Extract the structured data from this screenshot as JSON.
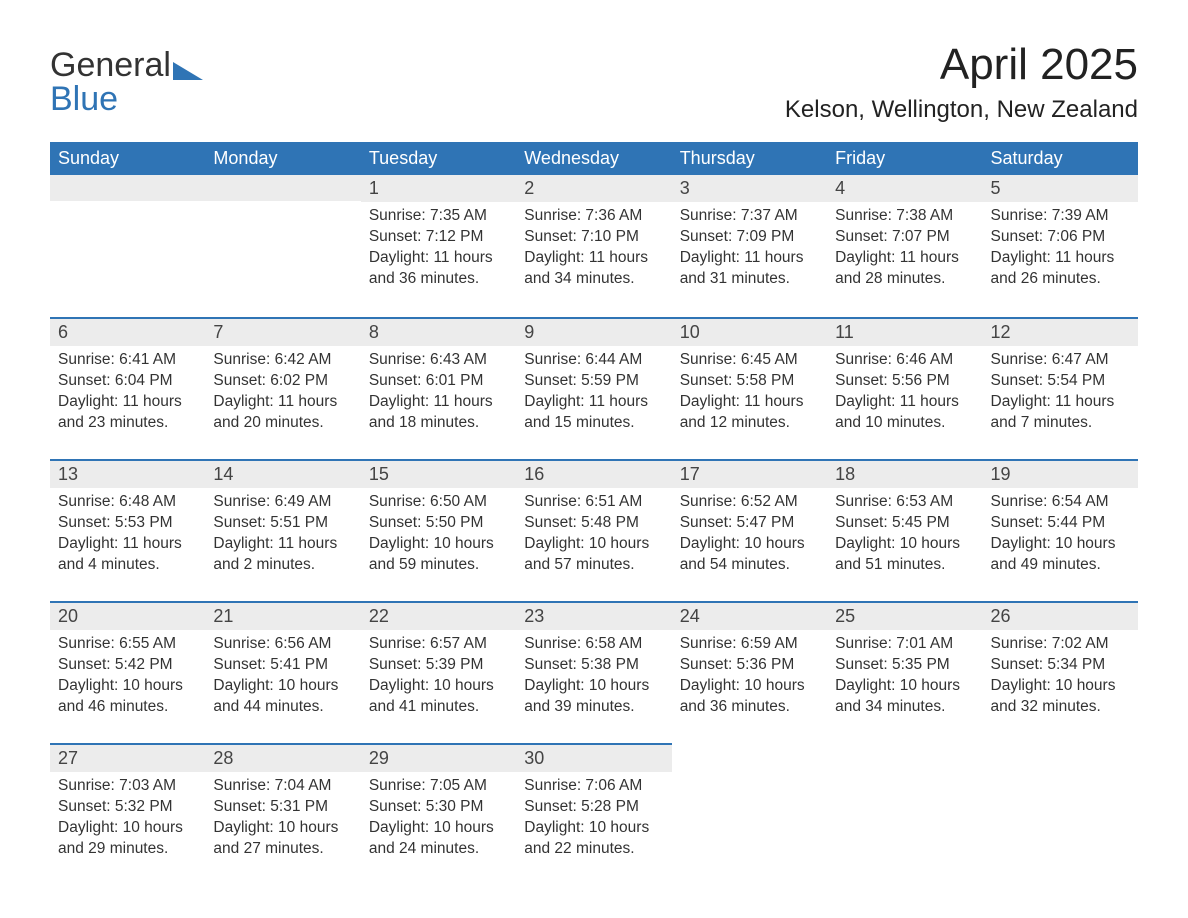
{
  "logo": {
    "line1": "General",
    "line2": "Blue"
  },
  "title": "April 2025",
  "location": "Kelson, Wellington, New Zealand",
  "colors": {
    "header_bg": "#2f74b5",
    "header_text": "#ffffff",
    "daynum_bg": "#ececec",
    "divider": "#2f74b5",
    "text": "#333333",
    "page_bg": "#ffffff"
  },
  "dayNames": [
    "Sunday",
    "Monday",
    "Tuesday",
    "Wednesday",
    "Thursday",
    "Friday",
    "Saturday"
  ],
  "weeks": [
    [
      null,
      null,
      {
        "n": "1",
        "sunrise": "7:35 AM",
        "sunset": "7:12 PM",
        "daylight": "11 hours and 36 minutes."
      },
      {
        "n": "2",
        "sunrise": "7:36 AM",
        "sunset": "7:10 PM",
        "daylight": "11 hours and 34 minutes."
      },
      {
        "n": "3",
        "sunrise": "7:37 AM",
        "sunset": "7:09 PM",
        "daylight": "11 hours and 31 minutes."
      },
      {
        "n": "4",
        "sunrise": "7:38 AM",
        "sunset": "7:07 PM",
        "daylight": "11 hours and 28 minutes."
      },
      {
        "n": "5",
        "sunrise": "7:39 AM",
        "sunset": "7:06 PM",
        "daylight": "11 hours and 26 minutes."
      }
    ],
    [
      {
        "n": "6",
        "sunrise": "6:41 AM",
        "sunset": "6:04 PM",
        "daylight": "11 hours and 23 minutes."
      },
      {
        "n": "7",
        "sunrise": "6:42 AM",
        "sunset": "6:02 PM",
        "daylight": "11 hours and 20 minutes."
      },
      {
        "n": "8",
        "sunrise": "6:43 AM",
        "sunset": "6:01 PM",
        "daylight": "11 hours and 18 minutes."
      },
      {
        "n": "9",
        "sunrise": "6:44 AM",
        "sunset": "5:59 PM",
        "daylight": "11 hours and 15 minutes."
      },
      {
        "n": "10",
        "sunrise": "6:45 AM",
        "sunset": "5:58 PM",
        "daylight": "11 hours and 12 minutes."
      },
      {
        "n": "11",
        "sunrise": "6:46 AM",
        "sunset": "5:56 PM",
        "daylight": "11 hours and 10 minutes."
      },
      {
        "n": "12",
        "sunrise": "6:47 AM",
        "sunset": "5:54 PM",
        "daylight": "11 hours and 7 minutes."
      }
    ],
    [
      {
        "n": "13",
        "sunrise": "6:48 AM",
        "sunset": "5:53 PM",
        "daylight": "11 hours and 4 minutes."
      },
      {
        "n": "14",
        "sunrise": "6:49 AM",
        "sunset": "5:51 PM",
        "daylight": "11 hours and 2 minutes."
      },
      {
        "n": "15",
        "sunrise": "6:50 AM",
        "sunset": "5:50 PM",
        "daylight": "10 hours and 59 minutes."
      },
      {
        "n": "16",
        "sunrise": "6:51 AM",
        "sunset": "5:48 PM",
        "daylight": "10 hours and 57 minutes."
      },
      {
        "n": "17",
        "sunrise": "6:52 AM",
        "sunset": "5:47 PM",
        "daylight": "10 hours and 54 minutes."
      },
      {
        "n": "18",
        "sunrise": "6:53 AM",
        "sunset": "5:45 PM",
        "daylight": "10 hours and 51 minutes."
      },
      {
        "n": "19",
        "sunrise": "6:54 AM",
        "sunset": "5:44 PM",
        "daylight": "10 hours and 49 minutes."
      }
    ],
    [
      {
        "n": "20",
        "sunrise": "6:55 AM",
        "sunset": "5:42 PM",
        "daylight": "10 hours and 46 minutes."
      },
      {
        "n": "21",
        "sunrise": "6:56 AM",
        "sunset": "5:41 PM",
        "daylight": "10 hours and 44 minutes."
      },
      {
        "n": "22",
        "sunrise": "6:57 AM",
        "sunset": "5:39 PM",
        "daylight": "10 hours and 41 minutes."
      },
      {
        "n": "23",
        "sunrise": "6:58 AM",
        "sunset": "5:38 PM",
        "daylight": "10 hours and 39 minutes."
      },
      {
        "n": "24",
        "sunrise": "6:59 AM",
        "sunset": "5:36 PM",
        "daylight": "10 hours and 36 minutes."
      },
      {
        "n": "25",
        "sunrise": "7:01 AM",
        "sunset": "5:35 PM",
        "daylight": "10 hours and 34 minutes."
      },
      {
        "n": "26",
        "sunrise": "7:02 AM",
        "sunset": "5:34 PM",
        "daylight": "10 hours and 32 minutes."
      }
    ],
    [
      {
        "n": "27",
        "sunrise": "7:03 AM",
        "sunset": "5:32 PM",
        "daylight": "10 hours and 29 minutes."
      },
      {
        "n": "28",
        "sunrise": "7:04 AM",
        "sunset": "5:31 PM",
        "daylight": "10 hours and 27 minutes."
      },
      {
        "n": "29",
        "sunrise": "7:05 AM",
        "sunset": "5:30 PM",
        "daylight": "10 hours and 24 minutes."
      },
      {
        "n": "30",
        "sunrise": "7:06 AM",
        "sunset": "5:28 PM",
        "daylight": "10 hours and 22 minutes."
      },
      null,
      null,
      null
    ]
  ],
  "labels": {
    "sunrise": "Sunrise: ",
    "sunset": "Sunset: ",
    "daylight": "Daylight: "
  }
}
